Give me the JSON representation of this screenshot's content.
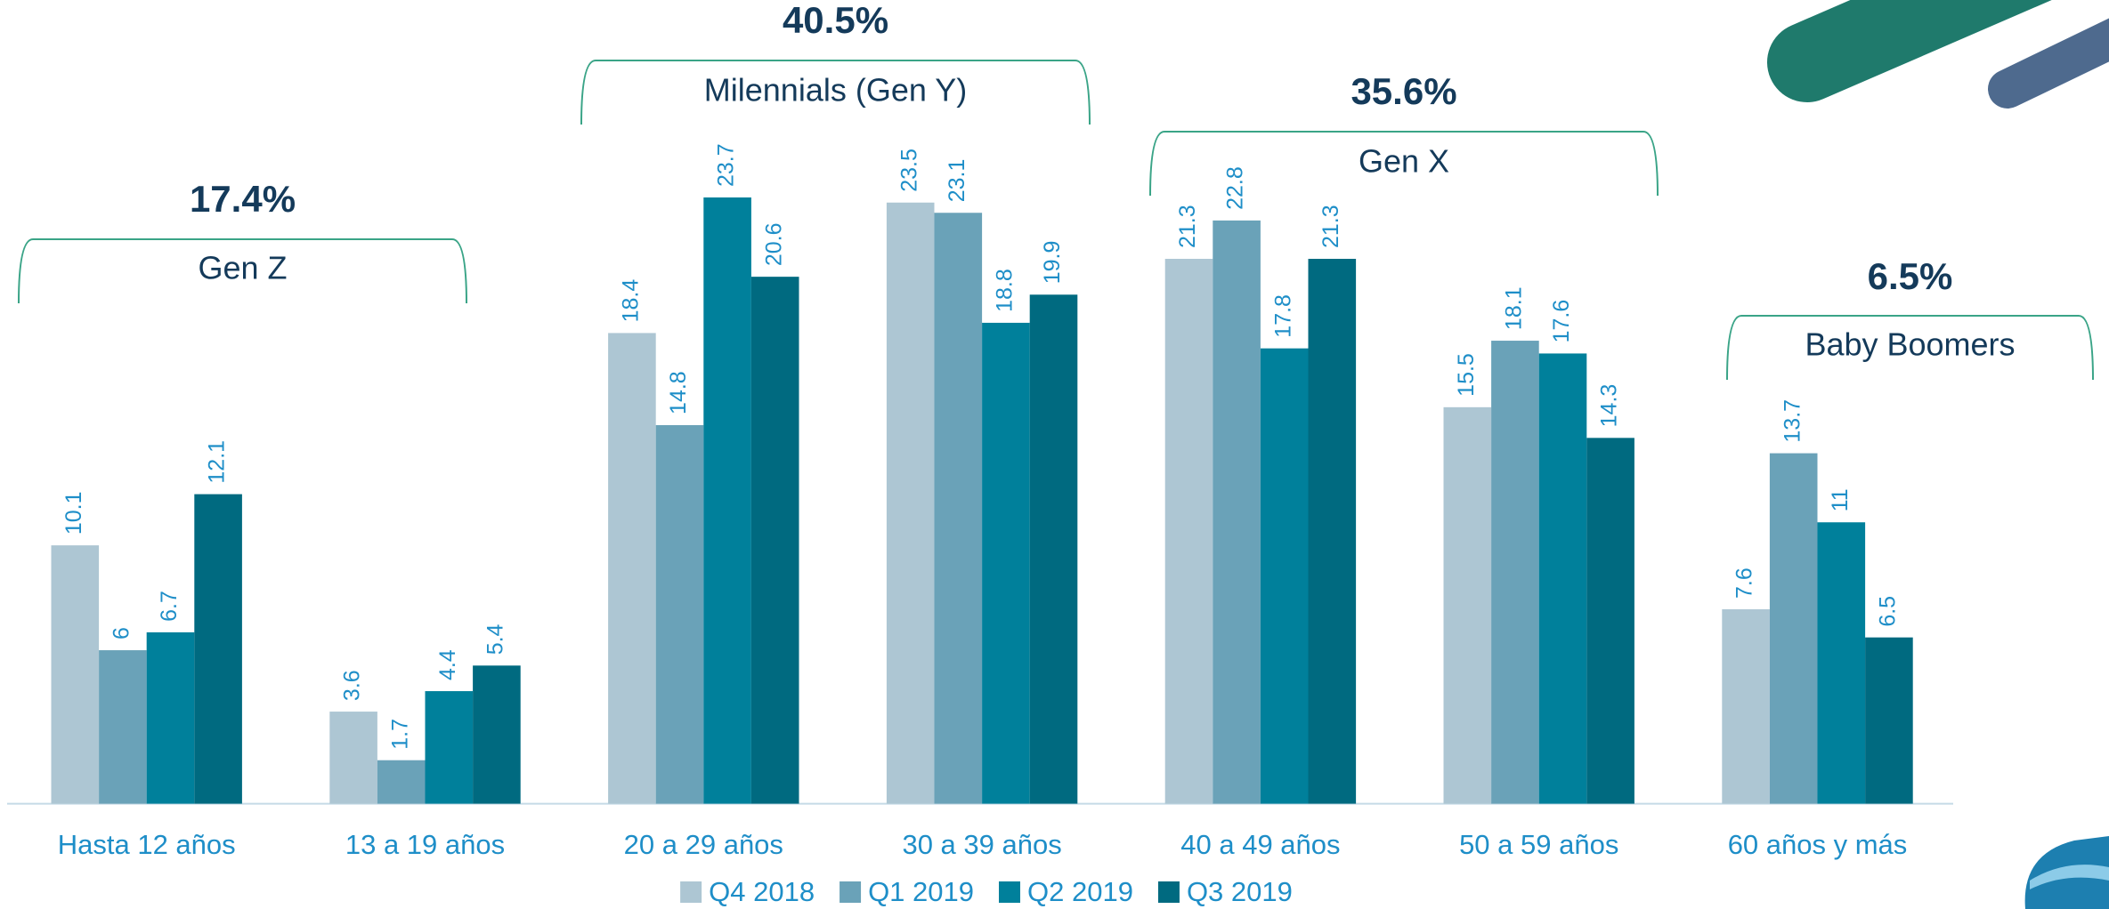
{
  "chart_data": {
    "type": "bar",
    "categories": [
      "Hasta 12 años",
      "13 a 19 años",
      "20 a 29 años",
      "30 a 39 años",
      "40 a 49 años",
      "50 a 59 años",
      "60 años y más"
    ],
    "series": [
      {
        "name": "Q4 2018",
        "color": "#adc6d3",
        "values": [
          10.1,
          3.6,
          18.4,
          23.5,
          21.3,
          15.5,
          7.6
        ]
      },
      {
        "name": "Q1 2019",
        "color": "#6aa2b8",
        "values": [
          6,
          1.7,
          14.8,
          23.1,
          22.8,
          18.1,
          13.7
        ]
      },
      {
        "name": "Q2 2019",
        "color": "#00809b",
        "values": [
          6.7,
          4.4,
          23.7,
          18.8,
          17.8,
          17.6,
          11
        ]
      },
      {
        "name": "Q3 2019",
        "color": "#006a80",
        "values": [
          12.1,
          5.4,
          20.6,
          19.9,
          21.3,
          14.3,
          6.5
        ]
      }
    ],
    "groups": [
      {
        "name": "Gen Z",
        "share": "17.4%"
      },
      {
        "name": "Milennials (Gen Y)",
        "share": "40.5%"
      },
      {
        "name": "Gen X",
        "share": "35.6%"
      },
      {
        "name": "Baby Boomers",
        "share": "6.5%"
      }
    ],
    "legend": "bottom"
  }
}
